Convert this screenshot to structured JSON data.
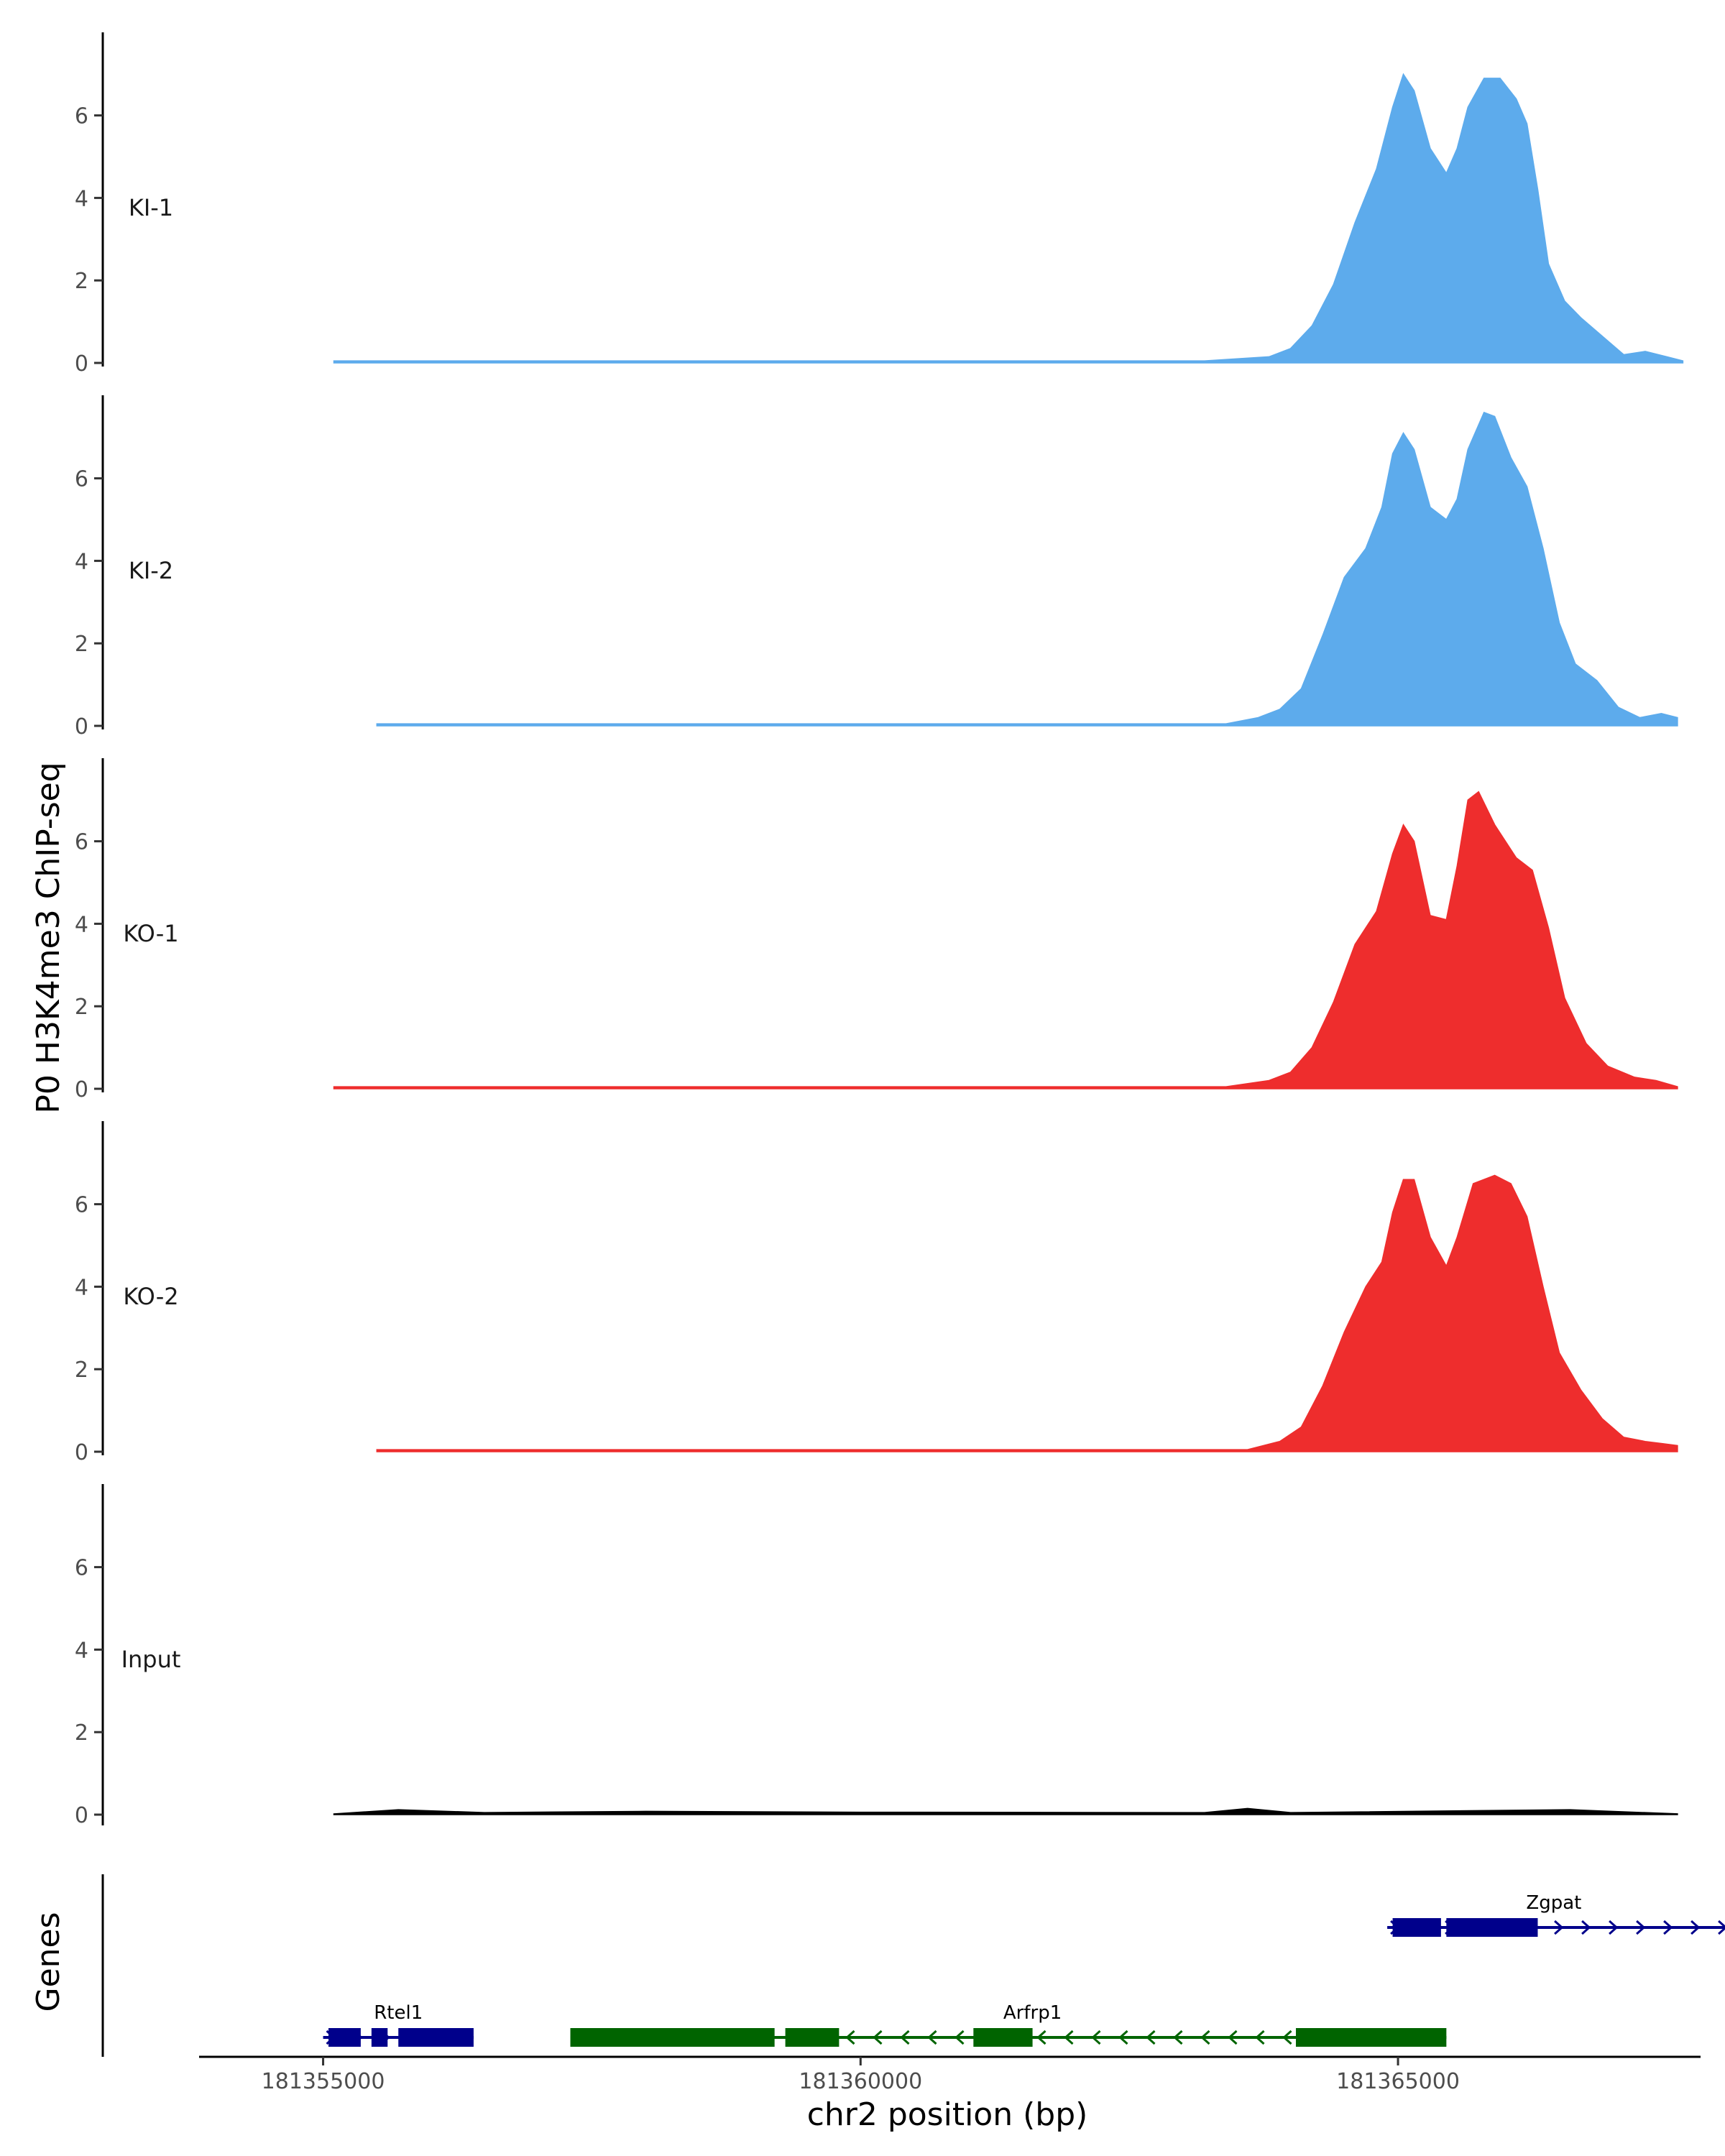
{
  "chart_data": {
    "type": "area",
    "ylabel": "P0 H3K4me3 ChIP-seq",
    "genes_label": "Genes",
    "xlabel": "chr2 position (bp)",
    "xlim": [
      181354000,
      181368500
    ],
    "ylim": [
      0,
      8
    ],
    "y_ticks": [
      0,
      2,
      4,
      6
    ],
    "x_ticks": [
      {
        "value": 181355000,
        "label": "181355000"
      },
      {
        "value": 181360000,
        "label": "181360000"
      },
      {
        "value": 181365000,
        "label": "181365000"
      }
    ],
    "colors": {
      "KI": "#5DABEC",
      "KO": "#EE2D2D",
      "Input": "#000000",
      "Rtel1": "#00008B",
      "Zgpat": "#00008B",
      "Arfrp1": "#006400"
    },
    "tracks": [
      {
        "name": "KI-1",
        "color": "#5DABEC",
        "start": 181355100,
        "end": 181367650,
        "points": [
          [
            181355100,
            0.05
          ],
          [
            181363200,
            0.05
          ],
          [
            181363800,
            0.15
          ],
          [
            181364000,
            0.35
          ],
          [
            181364200,
            0.9
          ],
          [
            181364400,
            1.9
          ],
          [
            181364600,
            3.4
          ],
          [
            181364800,
            4.7
          ],
          [
            181364950,
            6.2
          ],
          [
            181365050,
            7.0
          ],
          [
            181365150,
            6.6
          ],
          [
            181365300,
            5.2
          ],
          [
            181365450,
            4.6
          ],
          [
            181365550,
            5.2
          ],
          [
            181365650,
            6.2
          ],
          [
            181365800,
            6.9
          ],
          [
            181365950,
            6.9
          ],
          [
            181366100,
            6.4
          ],
          [
            181366200,
            5.8
          ],
          [
            181366300,
            4.2
          ],
          [
            181366400,
            2.4
          ],
          [
            181366550,
            1.5
          ],
          [
            181366700,
            1.1
          ],
          [
            181366900,
            0.65
          ],
          [
            181367100,
            0.2
          ],
          [
            181367300,
            0.28
          ],
          [
            181367500,
            0.15
          ],
          [
            181367650,
            0.05
          ]
        ]
      },
      {
        "name": "KI-2",
        "color": "#5DABEC",
        "start": 181355500,
        "end": 181367600,
        "points": [
          [
            181355500,
            0.05
          ],
          [
            181363400,
            0.05
          ],
          [
            181363700,
            0.2
          ],
          [
            181363900,
            0.4
          ],
          [
            181364100,
            0.9
          ],
          [
            181364300,
            2.2
          ],
          [
            181364500,
            3.6
          ],
          [
            181364700,
            4.3
          ],
          [
            181364850,
            5.3
          ],
          [
            181364950,
            6.6
          ],
          [
            181365050,
            7.1
          ],
          [
            181365150,
            6.7
          ],
          [
            181365300,
            5.3
          ],
          [
            181365450,
            5.0
          ],
          [
            181365550,
            5.5
          ],
          [
            181365650,
            6.7
          ],
          [
            181365800,
            7.6
          ],
          [
            181365900,
            7.5
          ],
          [
            181366050,
            6.5
          ],
          [
            181366200,
            5.8
          ],
          [
            181366350,
            4.3
          ],
          [
            181366500,
            2.5
          ],
          [
            181366650,
            1.5
          ],
          [
            181366850,
            1.1
          ],
          [
            181367050,
            0.45
          ],
          [
            181367250,
            0.2
          ],
          [
            181367450,
            0.3
          ],
          [
            181367600,
            0.2
          ]
        ]
      },
      {
        "name": "KO-1",
        "color": "#EE2D2D",
        "start": 181355100,
        "end": 181367600,
        "points": [
          [
            181355100,
            0.05
          ],
          [
            181363400,
            0.05
          ],
          [
            181363800,
            0.2
          ],
          [
            181364000,
            0.4
          ],
          [
            181364200,
            1.0
          ],
          [
            181364400,
            2.1
          ],
          [
            181364600,
            3.5
          ],
          [
            181364800,
            4.3
          ],
          [
            181364950,
            5.7
          ],
          [
            181365050,
            6.4
          ],
          [
            181365150,
            6.0
          ],
          [
            181365300,
            4.2
          ],
          [
            181365450,
            4.1
          ],
          [
            181365550,
            5.4
          ],
          [
            181365650,
            7.0
          ],
          [
            181365750,
            7.2
          ],
          [
            181365900,
            6.4
          ],
          [
            181366100,
            5.6
          ],
          [
            181366250,
            5.3
          ],
          [
            181366400,
            3.9
          ],
          [
            181366550,
            2.2
          ],
          [
            181366750,
            1.1
          ],
          [
            181366950,
            0.55
          ],
          [
            181367200,
            0.28
          ],
          [
            181367400,
            0.2
          ],
          [
            181367600,
            0.05
          ]
        ]
      },
      {
        "name": "KO-2",
        "color": "#EE2D2D",
        "start": 181355500,
        "end": 181367600,
        "points": [
          [
            181355500,
            0.05
          ],
          [
            181363600,
            0.05
          ],
          [
            181363900,
            0.25
          ],
          [
            181364100,
            0.6
          ],
          [
            181364300,
            1.6
          ],
          [
            181364500,
            2.9
          ],
          [
            181364700,
            4.0
          ],
          [
            181364850,
            4.6
          ],
          [
            181364950,
            5.8
          ],
          [
            181365050,
            6.6
          ],
          [
            181365150,
            6.6
          ],
          [
            181365300,
            5.2
          ],
          [
            181365450,
            4.5
          ],
          [
            181365550,
            5.2
          ],
          [
            181365700,
            6.5
          ],
          [
            181365900,
            6.7
          ],
          [
            181366050,
            6.5
          ],
          [
            181366200,
            5.7
          ],
          [
            181366350,
            4.0
          ],
          [
            181366500,
            2.4
          ],
          [
            181366700,
            1.5
          ],
          [
            181366900,
            0.8
          ],
          [
            181367100,
            0.35
          ],
          [
            181367300,
            0.25
          ],
          [
            181367450,
            0.2
          ],
          [
            181367600,
            0.15
          ]
        ]
      },
      {
        "name": "Input",
        "color": "#000000",
        "start": 181355100,
        "end": 181367600,
        "points": [
          [
            181355100,
            0.02
          ],
          [
            181355700,
            0.12
          ],
          [
            181356500,
            0.05
          ],
          [
            181358000,
            0.08
          ],
          [
            181360000,
            0.06
          ],
          [
            181363200,
            0.05
          ],
          [
            181363600,
            0.15
          ],
          [
            181364000,
            0.05
          ],
          [
            181366600,
            0.12
          ],
          [
            181367600,
            0.02
          ]
        ]
      }
    ],
    "genes": [
      {
        "name": "Rtel1",
        "strand": "+",
        "color": "#00008B",
        "row": 2,
        "start": 181355000,
        "end": 181356400,
        "label_pos": 181355700,
        "exons": [
          [
            181355050,
            181355350
          ],
          [
            181355450,
            181355600
          ],
          [
            181355700,
            181356400
          ]
        ]
      },
      {
        "name": "Arfrp1",
        "strand": "-",
        "color": "#006400",
        "row": 2,
        "start": 181357300,
        "end": 181365450,
        "label_pos": 181361600,
        "exons": [
          [
            181357300,
            181359200
          ],
          [
            181359300,
            181359800
          ],
          [
            181361050,
            181361600
          ],
          [
            181364050,
            181365450
          ]
        ]
      },
      {
        "name": "Zgpat",
        "strand": "+",
        "color": "#00008B",
        "row": 1,
        "start": 181364900,
        "end": 181368300,
        "label_pos": 181366450,
        "exons": [
          [
            181364950,
            181365400
          ],
          [
            181365450,
            181366300
          ]
        ]
      }
    ]
  }
}
